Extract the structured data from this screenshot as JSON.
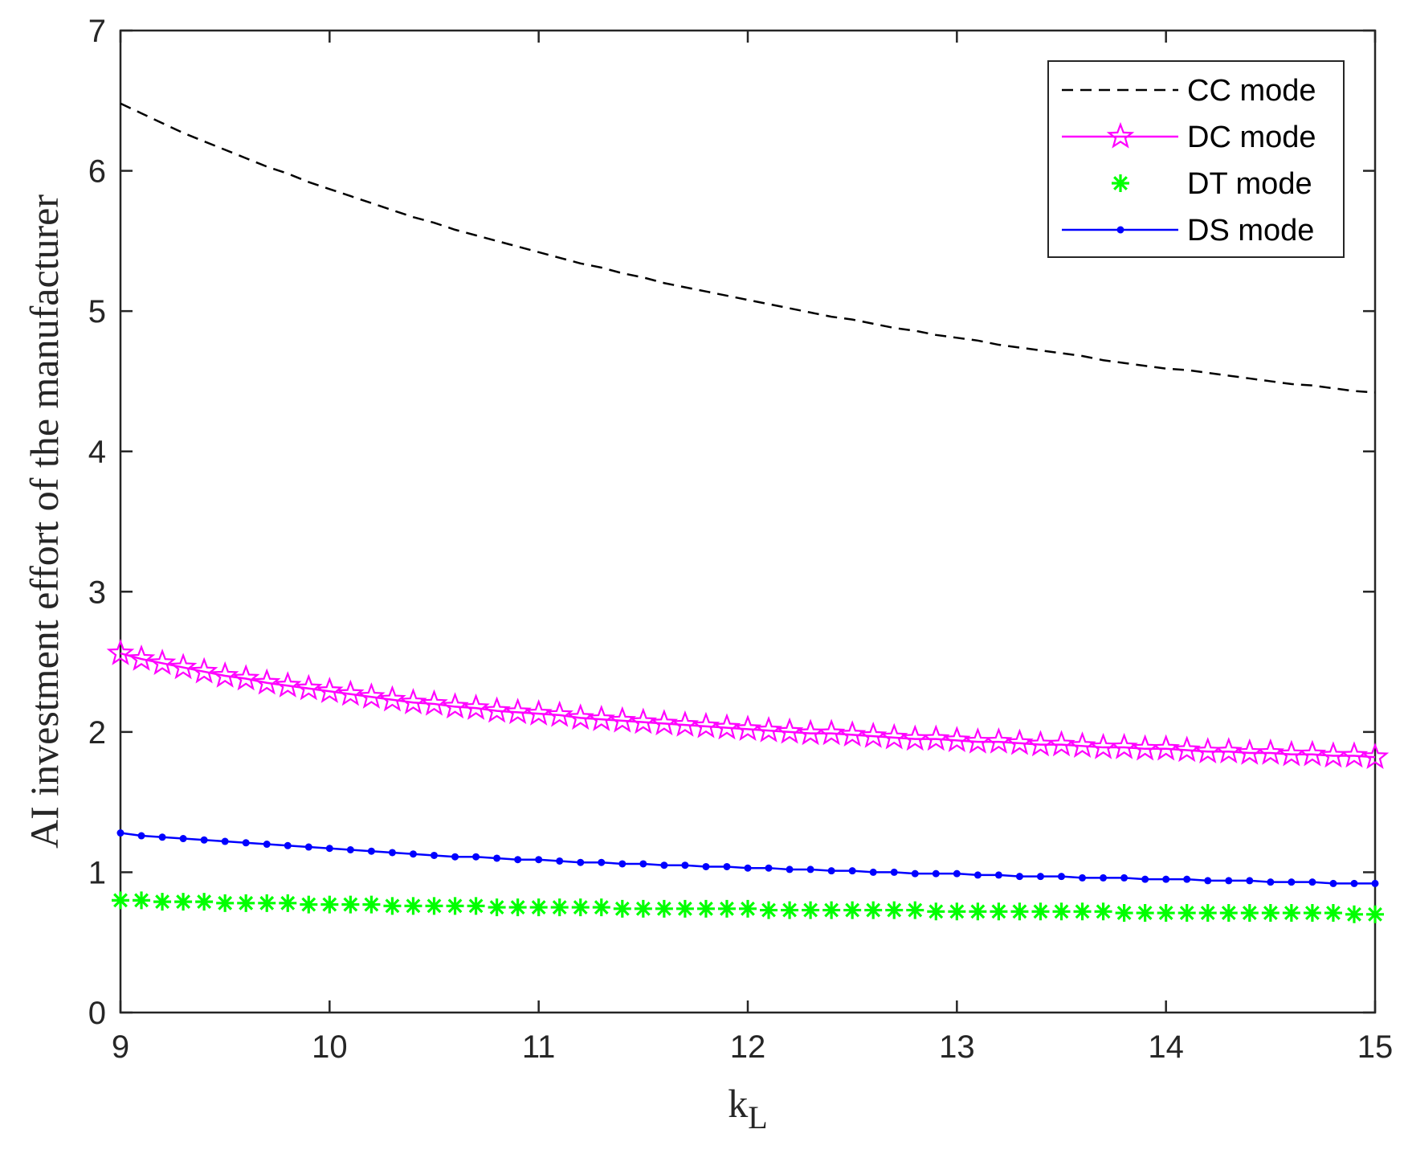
{
  "chart_data": {
    "type": "line",
    "title": "",
    "xlabel": "k",
    "xlabel_sub": "L",
    "ylabel": "AI investment effort of the manufacturer",
    "xlim": [
      9,
      15
    ],
    "ylim": [
      0,
      7
    ],
    "xticks": [
      "9",
      "10",
      "11",
      "12",
      "13",
      "14",
      "15"
    ],
    "yticks": [
      "0",
      "1",
      "2",
      "3",
      "4",
      "5",
      "6",
      "7"
    ],
    "grid": false,
    "legend_position": "top-right",
    "x_start": 9,
    "x_step": 0.1,
    "series": [
      {
        "name": "CC mode",
        "style": "dashed",
        "marker": "none",
        "color": "#000000",
        "values": [
          6.48,
          6.41,
          6.34,
          6.27,
          6.21,
          6.15,
          6.09,
          6.03,
          5.98,
          5.92,
          5.87,
          5.82,
          5.77,
          5.72,
          5.67,
          5.63,
          5.58,
          5.54,
          5.5,
          5.46,
          5.42,
          5.38,
          5.34,
          5.31,
          5.27,
          5.24,
          5.2,
          5.17,
          5.14,
          5.11,
          5.08,
          5.05,
          5.02,
          4.99,
          4.96,
          4.94,
          4.91,
          4.88,
          4.86,
          4.83,
          4.81,
          4.79,
          4.76,
          4.74,
          4.72,
          4.7,
          4.68,
          4.65,
          4.63,
          4.61,
          4.59,
          4.58,
          4.56,
          4.54,
          4.52,
          4.5,
          4.48,
          4.47,
          4.45,
          4.43,
          4.42
        ]
      },
      {
        "name": "DC mode",
        "style": "solid",
        "marker": "star",
        "color": "#ff00ff",
        "values": [
          2.56,
          2.52,
          2.49,
          2.46,
          2.43,
          2.4,
          2.38,
          2.35,
          2.33,
          2.31,
          2.29,
          2.27,
          2.25,
          2.23,
          2.21,
          2.2,
          2.18,
          2.17,
          2.15,
          2.14,
          2.13,
          2.12,
          2.1,
          2.09,
          2.08,
          2.07,
          2.06,
          2.05,
          2.04,
          2.03,
          2.02,
          2.01,
          2.0,
          1.99,
          1.99,
          1.98,
          1.97,
          1.96,
          1.95,
          1.95,
          1.94,
          1.93,
          1.93,
          1.92,
          1.91,
          1.91,
          1.9,
          1.89,
          1.89,
          1.88,
          1.88,
          1.87,
          1.86,
          1.86,
          1.85,
          1.85,
          1.84,
          1.84,
          1.83,
          1.83,
          1.82
        ]
      },
      {
        "name": "DT mode",
        "style": "none",
        "marker": "asterisk",
        "color": "#00ff00",
        "values": [
          0.8,
          0.8,
          0.79,
          0.79,
          0.79,
          0.78,
          0.78,
          0.78,
          0.78,
          0.77,
          0.77,
          0.77,
          0.77,
          0.76,
          0.76,
          0.76,
          0.76,
          0.76,
          0.75,
          0.75,
          0.75,
          0.75,
          0.75,
          0.75,
          0.74,
          0.74,
          0.74,
          0.74,
          0.74,
          0.74,
          0.74,
          0.73,
          0.73,
          0.73,
          0.73,
          0.73,
          0.73,
          0.73,
          0.73,
          0.72,
          0.72,
          0.72,
          0.72,
          0.72,
          0.72,
          0.72,
          0.72,
          0.72,
          0.71,
          0.71,
          0.71,
          0.71,
          0.71,
          0.71,
          0.71,
          0.71,
          0.71,
          0.71,
          0.71,
          0.7,
          0.7
        ]
      },
      {
        "name": "DS mode",
        "style": "solid",
        "marker": "dot",
        "color": "#0000ff",
        "values": [
          1.28,
          1.26,
          1.25,
          1.24,
          1.23,
          1.22,
          1.21,
          1.2,
          1.19,
          1.18,
          1.17,
          1.16,
          1.15,
          1.14,
          1.13,
          1.12,
          1.11,
          1.11,
          1.1,
          1.09,
          1.09,
          1.08,
          1.07,
          1.07,
          1.06,
          1.06,
          1.05,
          1.05,
          1.04,
          1.04,
          1.03,
          1.03,
          1.02,
          1.02,
          1.01,
          1.01,
          1.0,
          1.0,
          0.99,
          0.99,
          0.99,
          0.98,
          0.98,
          0.97,
          0.97,
          0.97,
          0.96,
          0.96,
          0.96,
          0.95,
          0.95,
          0.95,
          0.94,
          0.94,
          0.94,
          0.93,
          0.93,
          0.93,
          0.92,
          0.92,
          0.92
        ]
      }
    ]
  }
}
